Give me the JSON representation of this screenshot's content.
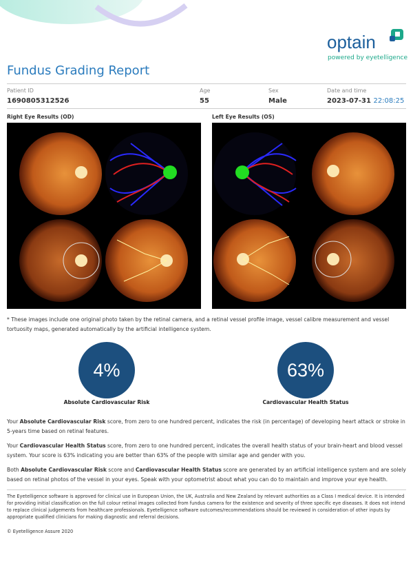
{
  "logo": {
    "name": "optain",
    "tagline": "powered by eyetelligence"
  },
  "header": {
    "title": "Fundus Grading Report"
  },
  "patient": {
    "fields": [
      {
        "label": "Patient ID",
        "value": "1690805312526"
      },
      {
        "label": "Age",
        "value": "55"
      },
      {
        "label": "Sex",
        "value": "Male"
      },
      {
        "label": "Date and time",
        "value": "2023-07-31",
        "time": "22:08:25"
      }
    ]
  },
  "eyes": {
    "right": "Right Eye Results (OD)",
    "left": "Left Eye Results (OS)"
  },
  "note": "* These images include one original photo taken by the retinal camera, and a retinal vessel profile image, vessel calibre measurement and vessel tortuosity maps, generated automatically by the artificial intelligence system.",
  "metrics": [
    {
      "value": "4%",
      "label": "Absolute Cardiovascular Risk"
    },
    {
      "value": "63%",
      "label": "Cardiovascular Health Status"
    }
  ],
  "paragraphs": [
    [
      "Your ",
      "Absolute Cardiovascular Risk",
      " score, from zero to one hundred percent, indicates the risk (in percentage) of developing heart attack or stroke in 5-years time based on retinal features."
    ],
    [
      "Your ",
      "Cardiovascular Health Status",
      " score, from zero to one hundred percent, indicates the overall health status of your brain-heart and blood vessel system. Your score is 63% indicating you are better than 63% of the people with similar age and gender with you."
    ],
    [
      "Both ",
      "Absolute Cardiovascular Risk",
      " score and ",
      "Cardiovascular Health Status",
      " score are generated by an artificial intelligence system and are solely based on retinal photos of the vessel in your eyes. Speak with your optometrist about what you can do to maintain and improve your eye health."
    ]
  ],
  "disclaimer": "The Eyetelligence software is approved for clinical use in European Union, the UK, Australia and New Zealand by relevant authorities as a Class I medical device. It is intended for providing initial classification on the full colour retinal images collected from fundus camera for the existence and severity of three specific eye diseases. It does not intend to replace clinical judgements from healthcare professionals. Eyetelligence software outcomes/recommendations should be reviewed in consideration of other inputs by appropriate qualified clinicians for making diagnostic and referral decisions.",
  "copyright": "© Eyetelligence Assure 2020"
}
